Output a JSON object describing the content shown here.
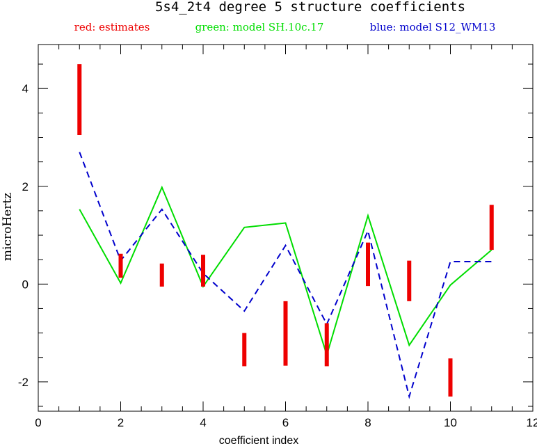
{
  "chart_data": {
    "type": "line",
    "title": "5s4_2t4 degree 5 structure coefficients",
    "xlabel": "coefficient index",
    "ylabel": "microHertz",
    "xlim": [
      0,
      12
    ],
    "ylim": [
      -2.6,
      4.9
    ],
    "x_ticks": [
      0,
      2,
      4,
      6,
      8,
      10,
      12
    ],
    "x_tick_labels": [
      "0",
      "2",
      "4",
      "6",
      "8",
      "10",
      "12"
    ],
    "y_ticks": [
      -2,
      0,
      2,
      4
    ],
    "y_tick_labels": [
      "-2",
      "0",
      "2",
      "4"
    ],
    "grid": false,
    "legend_position": "top",
    "legend": [
      {
        "label": "red: estimates",
        "color": "#ee0000"
      },
      {
        "label": "green: model SH.10c.17",
        "color": "#00dd00"
      },
      {
        "label": "blue: model S12_WM13",
        "color": "#0000cc"
      }
    ],
    "series": [
      {
        "name": "estimates",
        "kind": "errorbar",
        "color": "#ee0000",
        "x": [
          1,
          2,
          3,
          4,
          5,
          6,
          7,
          8,
          9,
          10,
          11
        ],
        "low": [
          3.05,
          0.13,
          -0.05,
          -0.05,
          -1.68,
          -1.67,
          -1.68,
          -0.04,
          -0.35,
          -2.3,
          0.7
        ],
        "high": [
          4.5,
          0.62,
          0.42,
          0.6,
          -1.0,
          -0.35,
          -0.8,
          0.85,
          0.48,
          -1.52,
          1.62
        ]
      },
      {
        "name": "model SH.10c.17",
        "kind": "line",
        "color": "#00dd00",
        "dash": "solid",
        "x": [
          1,
          2,
          3,
          4,
          5,
          6,
          7,
          8,
          9,
          10,
          11
        ],
        "y": [
          1.53,
          0.02,
          1.98,
          -0.05,
          1.16,
          1.25,
          -1.45,
          1.4,
          -1.25,
          -0.02,
          0.7
        ]
      },
      {
        "name": "model S12_WM13",
        "kind": "line",
        "color": "#0000cc",
        "dash": "dashed",
        "x": [
          1,
          2,
          3,
          4,
          5,
          6,
          7,
          8,
          9,
          10,
          11
        ],
        "y": [
          2.7,
          0.48,
          1.53,
          0.22,
          -0.55,
          0.79,
          -0.82,
          1.09,
          -2.3,
          0.46,
          0.46
        ]
      }
    ]
  }
}
